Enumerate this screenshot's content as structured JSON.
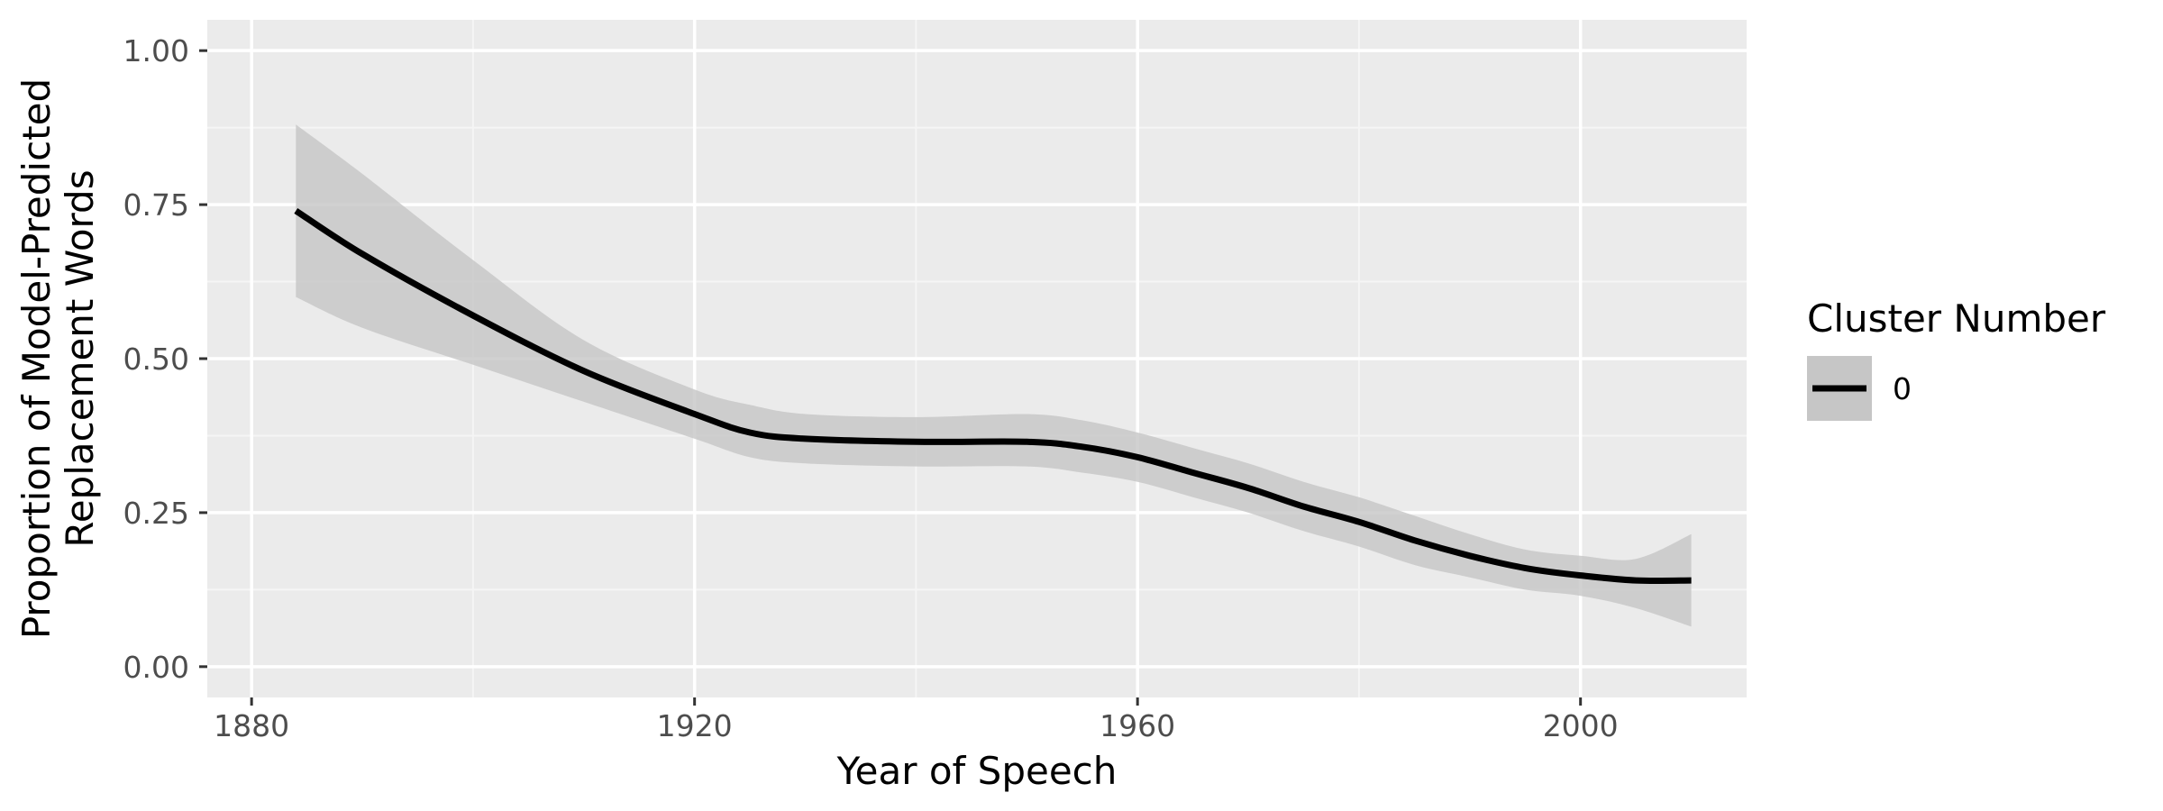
{
  "chart_data": {
    "type": "line",
    "xlabel": "Year of Speech",
    "ylabel_lines": [
      "Proportion of Model-Predicted",
      "Replacement Words"
    ],
    "xlim": [
      1876,
      2015
    ],
    "ylim": [
      -0.05,
      1.05
    ],
    "x_ticks": [
      1880,
      1920,
      1960,
      2000
    ],
    "x_tick_labels": [
      "1880",
      "1920",
      "1960",
      "2000"
    ],
    "x_minor_ticks": [
      1900,
      1940,
      1980
    ],
    "y_ticks": [
      0.0,
      0.25,
      0.5,
      0.75,
      1.0
    ],
    "y_tick_labels": [
      "0.00",
      "0.25",
      "0.50",
      "0.75",
      "1.00"
    ],
    "y_minor_ticks": [
      0.125,
      0.375,
      0.625,
      0.875
    ],
    "grid": true,
    "legend": {
      "title": "Cluster Number",
      "placement": "right",
      "entries": [
        "0"
      ]
    },
    "series": [
      {
        "name": "0",
        "color": "#000000",
        "ribbon_color": "#c6c6c6",
        "x": [
          1884,
          1890,
          1900,
          1910,
          1920,
          1925,
          1930,
          1940,
          1950,
          1955,
          1960,
          1965,
          1970,
          1975,
          1980,
          1985,
          1990,
          1995,
          2000,
          2005,
          2010
        ],
        "y": [
          0.74,
          0.67,
          0.57,
          0.48,
          0.41,
          0.38,
          0.37,
          0.365,
          0.365,
          0.357,
          0.34,
          0.315,
          0.29,
          0.26,
          0.235,
          0.205,
          0.18,
          0.16,
          0.148,
          0.14,
          0.14
        ],
        "ymin": [
          0.6,
          0.55,
          0.49,
          0.43,
          0.37,
          0.34,
          0.33,
          0.325,
          0.325,
          0.315,
          0.3,
          0.275,
          0.25,
          0.22,
          0.195,
          0.165,
          0.145,
          0.125,
          0.115,
          0.095,
          0.065
        ],
        "ymax": [
          0.88,
          0.8,
          0.66,
          0.53,
          0.45,
          0.425,
          0.41,
          0.405,
          0.41,
          0.4,
          0.38,
          0.355,
          0.33,
          0.3,
          0.275,
          0.245,
          0.215,
          0.19,
          0.18,
          0.175,
          0.215
        ]
      }
    ]
  },
  "colors": {
    "panel_background": "#ebebeb",
    "grid_major": "#ffffff",
    "grid_minor": "#f5f5f5",
    "line": "#000000",
    "ribbon": "#c6c6c6"
  }
}
